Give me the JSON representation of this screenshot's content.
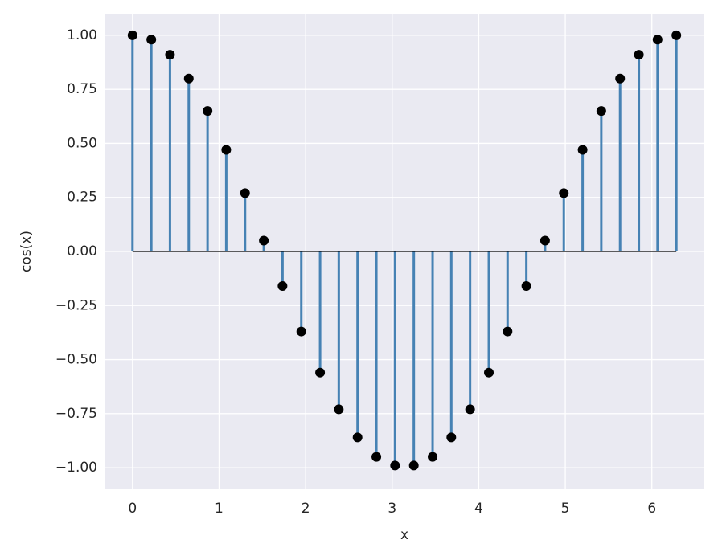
{
  "chart_data": {
    "type": "stem",
    "xlabel": "x",
    "ylabel": "cos(x)",
    "x": [
      0,
      0.217,
      0.433,
      0.65,
      0.867,
      1.083,
      1.3,
      1.517,
      1.733,
      1.95,
      2.167,
      2.383,
      2.6,
      2.817,
      3.033,
      3.25,
      3.467,
      3.683,
      3.9,
      4.117,
      4.333,
      4.55,
      4.766,
      4.983,
      5.2,
      5.416,
      5.633,
      5.85,
      6.066,
      6.283
    ],
    "values": [
      1,
      0.98,
      0.91,
      0.8,
      0.65,
      0.47,
      0.27,
      0.05,
      -0.16,
      -0.37,
      -0.56,
      -0.73,
      -0.86,
      -0.95,
      -0.99,
      -0.99,
      -0.95,
      -0.86,
      -0.73,
      -0.56,
      -0.37,
      -0.16,
      0.05,
      0.27,
      0.47,
      0.65,
      0.8,
      0.91,
      0.98,
      1
    ],
    "stem_color": "#4682b4",
    "marker_color": "#000000",
    "baseline_color": "#000000",
    "xlim": [
      -0.314,
      6.597
    ],
    "ylim": [
      -1.1,
      1.1
    ],
    "xticks": [
      0,
      1,
      2,
      3,
      4,
      5,
      6
    ],
    "yticks": [
      {
        "value": -1,
        "label": "−1.00"
      },
      {
        "value": -0.75,
        "label": "−0.75"
      },
      {
        "value": -0.5,
        "label": "−0.50"
      },
      {
        "value": -0.25,
        "label": "−0.25"
      },
      {
        "value": 0,
        "label": "0.00"
      },
      {
        "value": 0.25,
        "label": "0.25"
      },
      {
        "value": 0.5,
        "label": "0.50"
      },
      {
        "value": 0.75,
        "label": "0.75"
      },
      {
        "value": 1,
        "label": "1.00"
      }
    ],
    "grid": true
  }
}
